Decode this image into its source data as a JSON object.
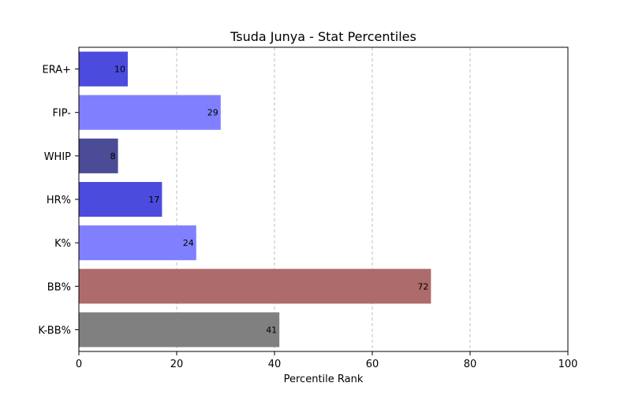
{
  "chart_data": {
    "type": "bar",
    "orientation": "horizontal",
    "title": "Tsuda Junya - Stat Percentiles",
    "xlabel": "Percentile Rank",
    "ylabel": "",
    "xlim": [
      0,
      100
    ],
    "xticks": [
      0,
      20,
      40,
      60,
      80,
      100
    ],
    "grid": "x-dashed",
    "categories": [
      "ERA+",
      "FIP-",
      "WHIP",
      "HR%",
      "K%",
      "BB%",
      "K-BB%"
    ],
    "values": [
      10,
      29,
      8,
      17,
      24,
      72,
      41
    ],
    "colors": [
      "#4b4bdd",
      "#8080ff",
      "#4b4b96",
      "#4b4bdd",
      "#8080ff",
      "#ae6b6b",
      "#808080"
    ]
  }
}
